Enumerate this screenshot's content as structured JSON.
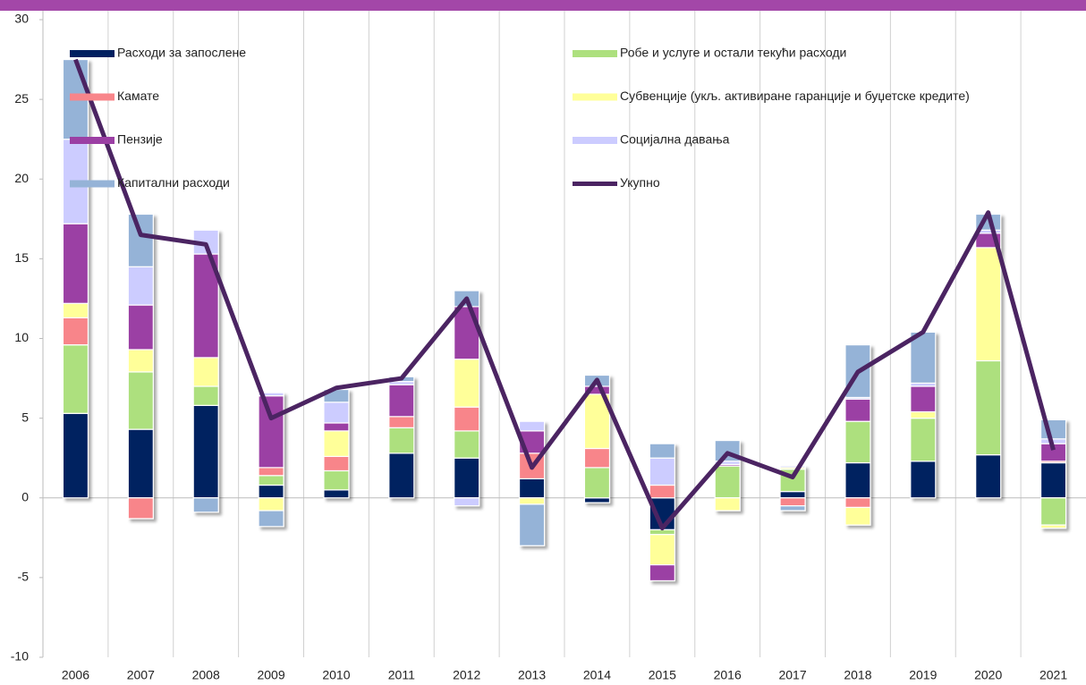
{
  "chart_data": {
    "type": "bar",
    "stacked": true,
    "categories": [
      "2006",
      "2007",
      "2008",
      "2009",
      "2010",
      "2011",
      "2012",
      "2013",
      "2014",
      "2015",
      "2016",
      "2017",
      "2018",
      "2019",
      "2020",
      "2021"
    ],
    "series": [
      {
        "name": "Расходи за запослене",
        "color": "#002060",
        "values": [
          5.3,
          4.3,
          5.8,
          0.8,
          0.5,
          2.8,
          2.5,
          1.2,
          -0.3,
          -2.0,
          0,
          0.4,
          2.2,
          2.3,
          2.7,
          2.2
        ]
      },
      {
        "name": "Робе и услуге и остали текући расходи",
        "color": "#ade07e",
        "values": [
          4.3,
          3.6,
          1.2,
          0.6,
          1.2,
          1.6,
          1.7,
          0,
          1.9,
          -0.3,
          2.0,
          1.4,
          2.6,
          2.7,
          5.9,
          -1.7
        ]
      },
      {
        "name": "Камате",
        "color": "#f8858a",
        "values": [
          1.7,
          -1.3,
          0,
          0.5,
          0.9,
          0.7,
          1.5,
          1.6,
          1.2,
          0.8,
          0,
          -0.5,
          -0.6,
          0,
          0,
          0.1
        ]
      },
      {
        "name": "Субвенције (укљ. активиране гаранције и буџетске кредите)",
        "color": "#ffff99",
        "values": [
          0.9,
          1.4,
          1.8,
          -0.8,
          1.6,
          0,
          3.0,
          -0.4,
          3.4,
          -1.9,
          -0.8,
          0.1,
          -1.1,
          0.4,
          7.1,
          -0.2
        ]
      },
      {
        "name": "Пензије",
        "color": "#9b3fa4",
        "values": [
          5.0,
          2.8,
          6.5,
          4.5,
          0.5,
          2.0,
          3.3,
          1.4,
          0.5,
          -1.0,
          0.1,
          0,
          1.4,
          1.6,
          0.9,
          1.1
        ]
      },
      {
        "name": "Социјална давања",
        "color": "#ccccff",
        "values": [
          5.3,
          2.4,
          1.5,
          0.2,
          1.3,
          0.2,
          -0.5,
          0.6,
          0,
          1.7,
          0.2,
          0.1,
          0.1,
          0.2,
          0.2,
          0.3
        ]
      },
      {
        "name": "Капитални расходи",
        "color": "#95b3d7",
        "values": [
          5.0,
          3.3,
          -0.9,
          -1.0,
          0.8,
          0.3,
          1.0,
          -2.6,
          0.7,
          0.9,
          1.3,
          -0.3,
          3.3,
          3.2,
          1.0,
          1.2
        ]
      },
      {
        "name": "Укупно",
        "color": "#4b2462",
        "kind": "line",
        "values": [
          27.5,
          16.5,
          15.9,
          5.0,
          6.9,
          7.5,
          12.5,
          1.9,
          7.4,
          -1.9,
          2.8,
          1.3,
          7.9,
          10.4,
          17.9,
          3.0
        ]
      }
    ],
    "ylim": [
      -10,
      30
    ],
    "yticks": [
      -10,
      -5,
      0,
      5,
      10,
      15,
      20,
      25,
      30
    ],
    "grid": true
  }
}
